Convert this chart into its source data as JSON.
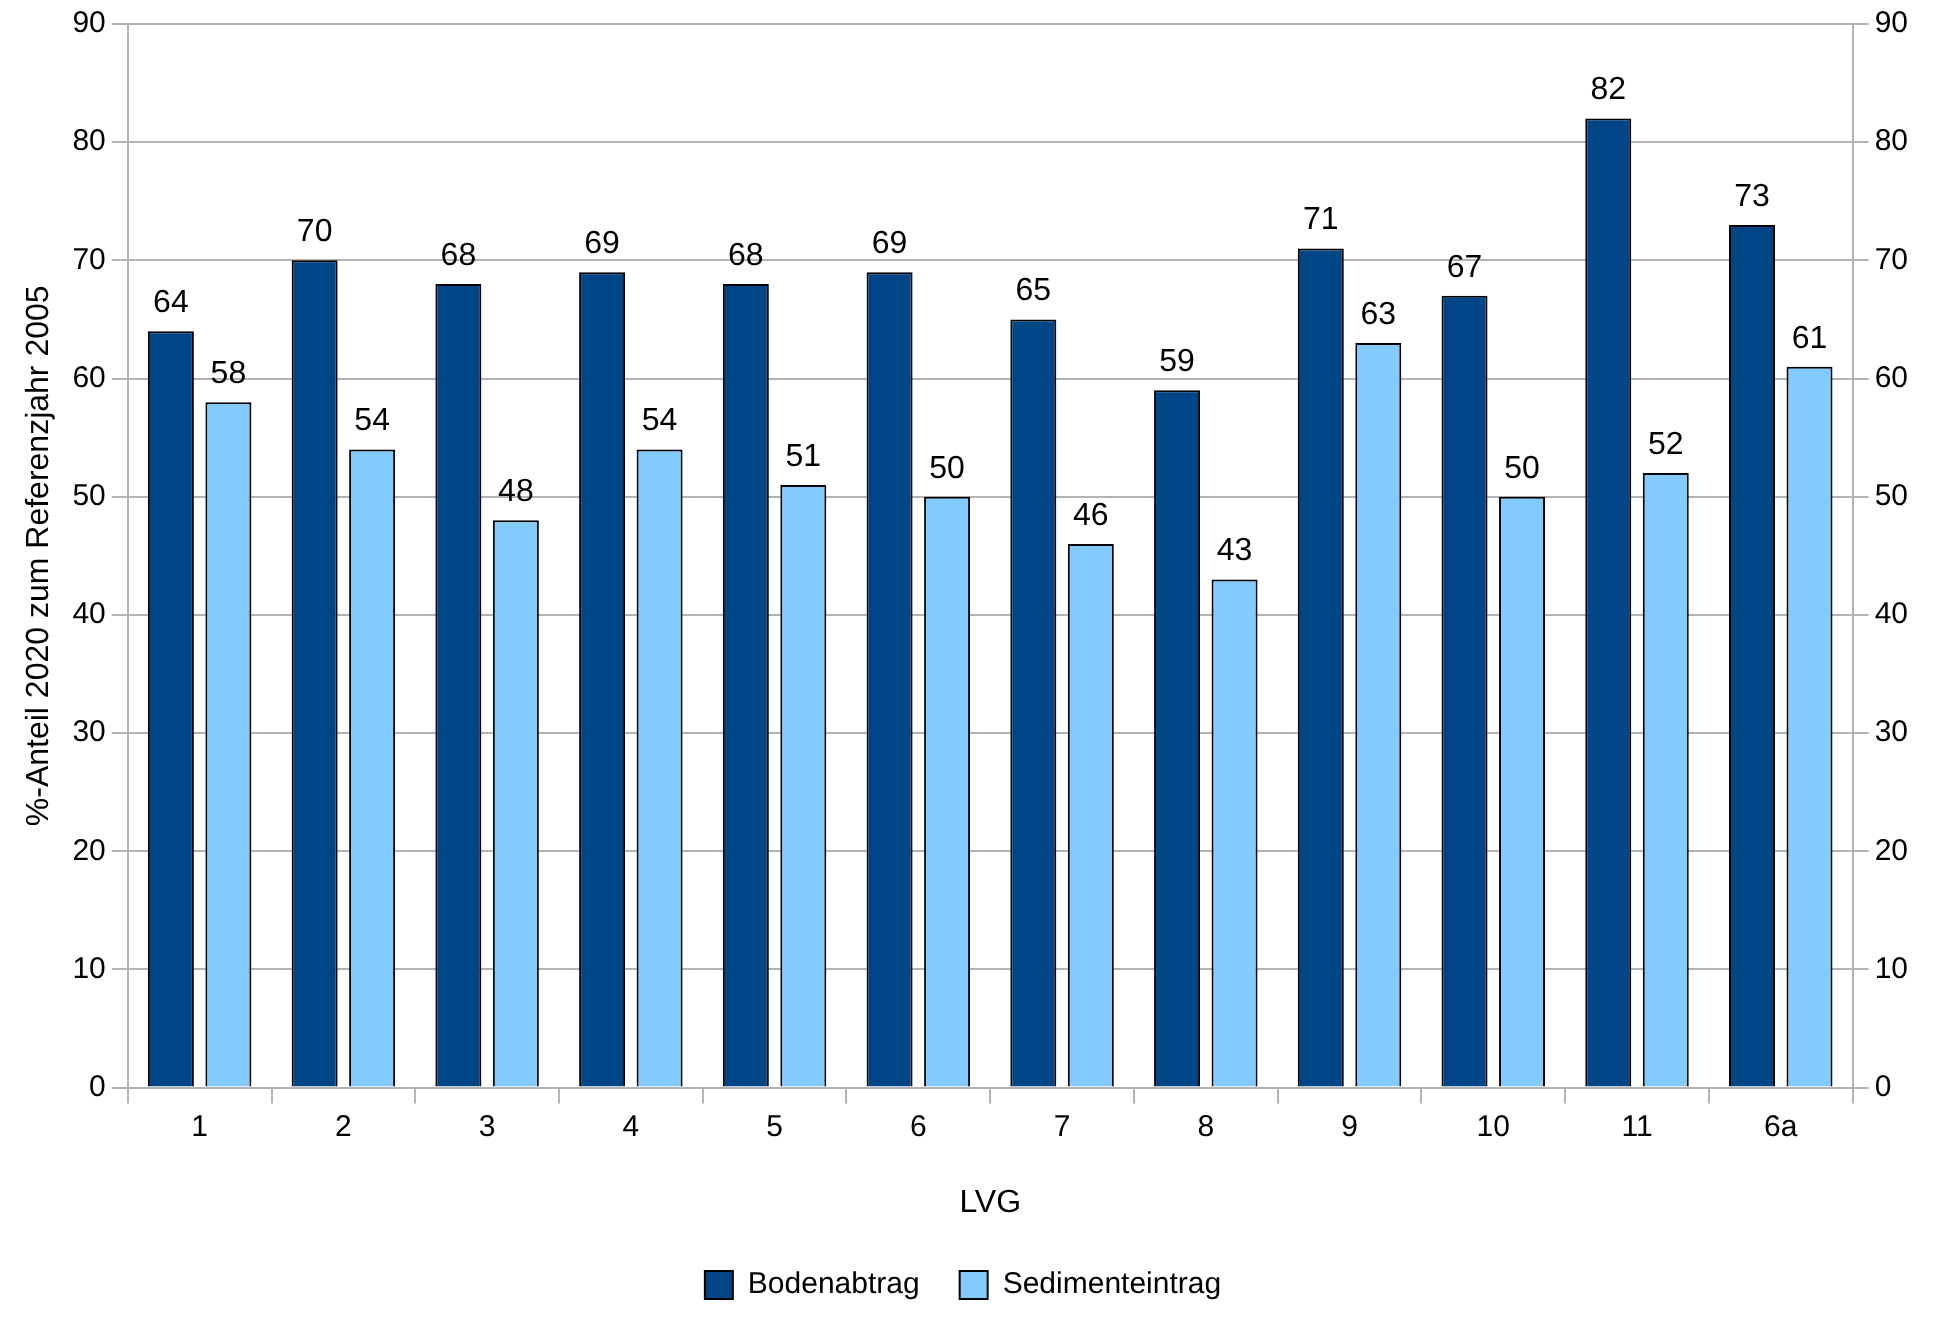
{
  "chart_data": {
    "type": "bar",
    "xlabel": "LVG",
    "ylabel": "%-Anteil 2020 zum Referenzjahr 2005",
    "categories": [
      "1",
      "2",
      "3",
      "4",
      "5",
      "6",
      "7",
      "8",
      "9",
      "10",
      "11",
      "6a"
    ],
    "series": [
      {
        "name": "Bodenabtrag",
        "color": "#004586",
        "values": [
          64,
          70,
          68,
          69,
          68,
          69,
          65,
          59,
          71,
          67,
          82,
          73
        ]
      },
      {
        "name": "Sedimenteintrag",
        "color": "#83caff",
        "values": [
          58,
          54,
          48,
          54,
          51,
          50,
          46,
          43,
          63,
          50,
          52,
          61
        ]
      }
    ],
    "ylim": [
      0,
      90
    ],
    "yticks": [
      0,
      10,
      20,
      30,
      40,
      50,
      60,
      70,
      80,
      90
    ],
    "y2lim": [
      0,
      90
    ],
    "y2ticks": [
      0,
      10,
      20,
      30,
      40,
      50,
      60,
      70,
      80,
      90
    ],
    "grid": "y",
    "legend": "bottom",
    "data_labels": true
  }
}
